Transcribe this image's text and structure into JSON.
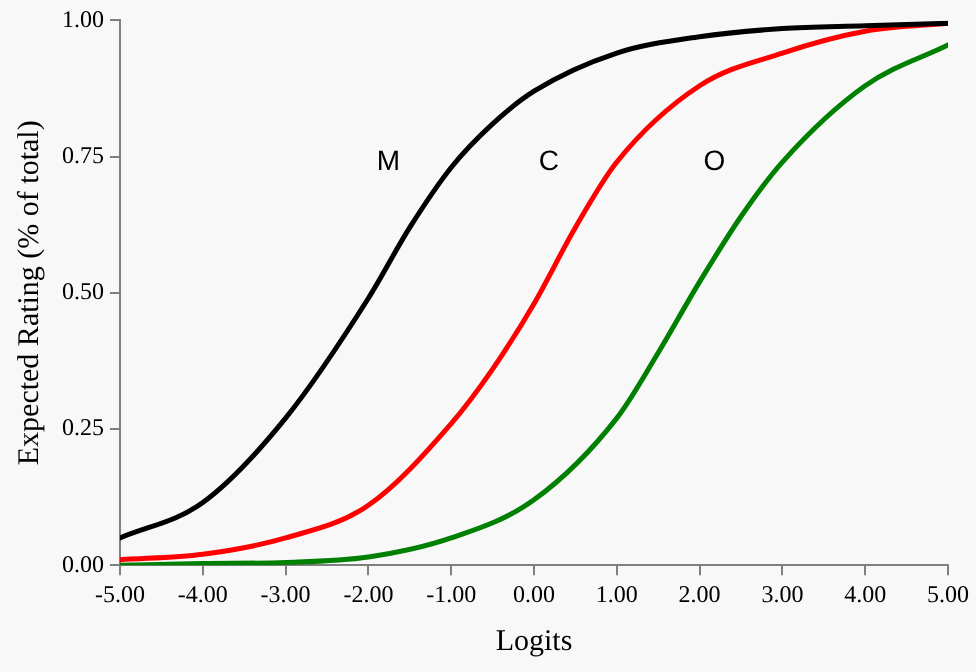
{
  "chart_data": {
    "type": "line",
    "xlabel": "Logits",
    "ylabel": "Expected Rating (% of total)",
    "xlim": [
      -5,
      5
    ],
    "xticks": [
      {
        "value": -5,
        "label": "-5.00"
      },
      {
        "value": -4,
        "label": "-4.00"
      },
      {
        "value": -3,
        "label": "-3.00"
      },
      {
        "value": -2,
        "label": "-2.00"
      },
      {
        "value": -1,
        "label": "-1.00"
      },
      {
        "value": 0,
        "label": "0.00"
      },
      {
        "value": 1,
        "label": "1.00"
      },
      {
        "value": 2,
        "label": "2.00"
      },
      {
        "value": 3,
        "label": "3.00"
      },
      {
        "value": 4,
        "label": "4.00"
      },
      {
        "value": 5,
        "label": "5.00"
      }
    ],
    "ylim": [
      0,
      1
    ],
    "yticks": [
      {
        "value": 0,
        "label": "0.00"
      },
      {
        "value": 0.25,
        "label": "0.25"
      },
      {
        "value": 0.5,
        "label": "0.50"
      },
      {
        "value": 0.75,
        "label": "0.75"
      },
      {
        "value": 1,
        "label": "1.00"
      }
    ],
    "grid": false,
    "legend": false,
    "marker": "none",
    "line_style": "solid",
    "series": [
      {
        "name": "M",
        "color": "#000000",
        "x": [
          -5,
          -4,
          -3,
          -2,
          -1.5,
          -1,
          -0.5,
          0,
          1,
          2,
          3,
          4,
          5
        ],
        "values": [
          0.05,
          0.115,
          0.27,
          0.49,
          0.62,
          0.73,
          0.81,
          0.87,
          0.94,
          0.97,
          0.985,
          0.99,
          0.995
        ]
      },
      {
        "name": "C",
        "color": "#ff0000",
        "x": [
          -5,
          -4,
          -3,
          -2,
          -1,
          -0.5,
          0,
          0.5,
          1,
          2,
          3,
          4,
          5
        ],
        "values": [
          0.01,
          0.02,
          0.05,
          0.11,
          0.26,
          0.36,
          0.48,
          0.62,
          0.74,
          0.88,
          0.94,
          0.98,
          0.995
        ]
      },
      {
        "name": "O",
        "color": "#008000",
        "x": [
          -5,
          -4,
          -3,
          -2,
          -1,
          0,
          1,
          1.5,
          2,
          2.5,
          3,
          4,
          5
        ],
        "values": [
          0,
          0.003,
          0.005,
          0.015,
          0.05,
          0.12,
          0.27,
          0.39,
          0.52,
          0.64,
          0.74,
          0.88,
          0.955
        ]
      }
    ]
  }
}
